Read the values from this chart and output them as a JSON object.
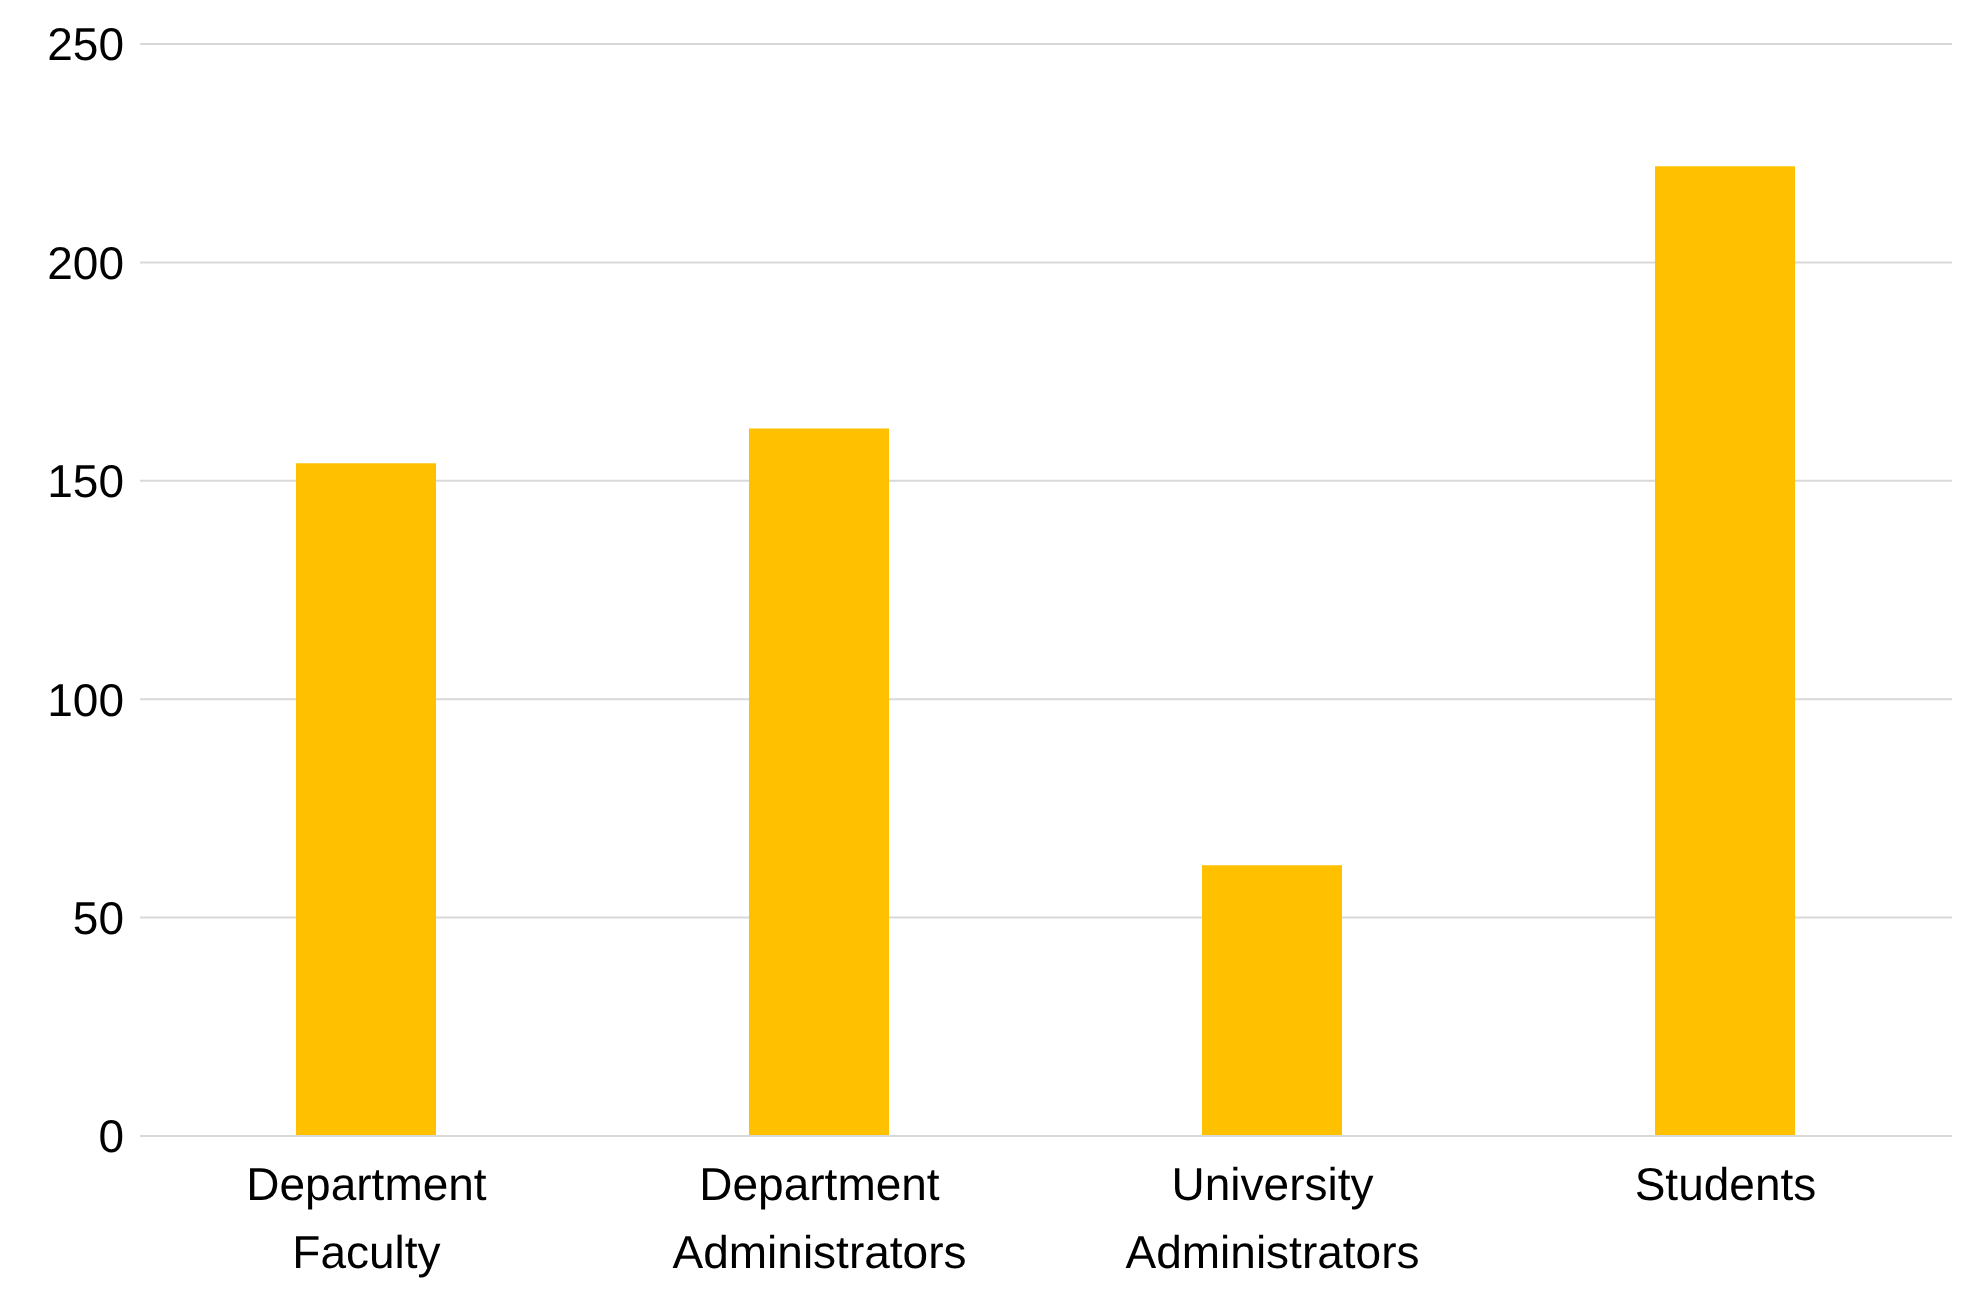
{
  "chart_data": {
    "type": "bar",
    "categories": [
      "Department Faculty",
      "Department Administrators",
      "University Administrators",
      "Students"
    ],
    "values": [
      154,
      162,
      62,
      222
    ],
    "color": "#ffc000",
    "ylim": [
      0,
      250
    ],
    "yticks": [
      0,
      50,
      100,
      150,
      200,
      250
    ],
    "grid": "y",
    "legend": false
  }
}
